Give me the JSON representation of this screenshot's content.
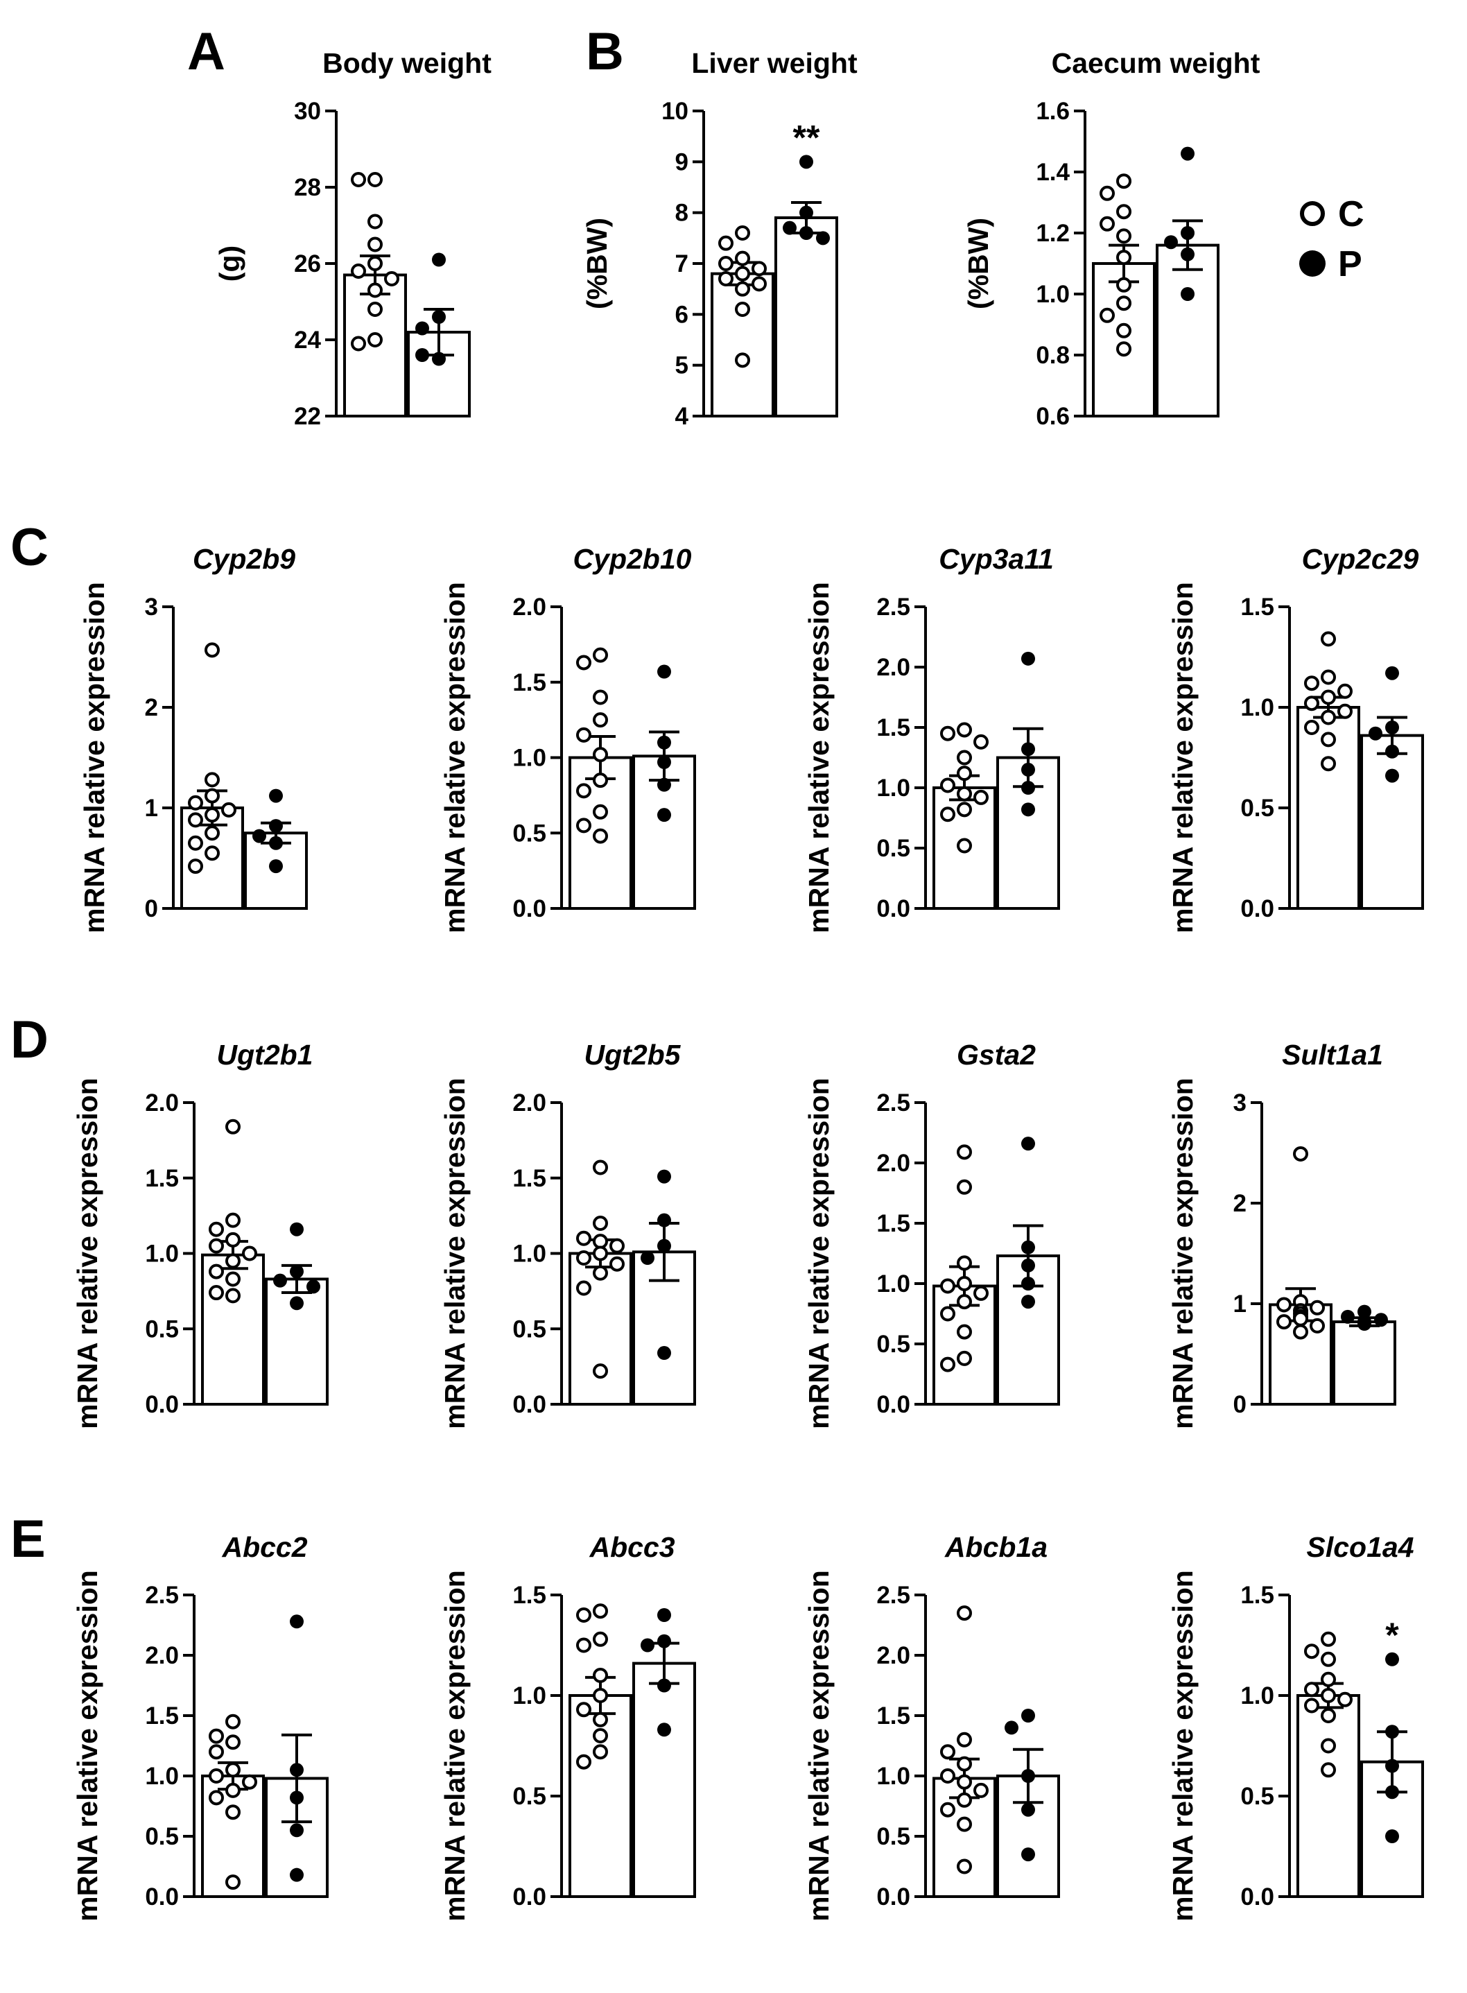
{
  "panel_labels": [
    "A",
    "B",
    "C",
    "D",
    "E"
  ],
  "legend": [
    {
      "label": "C",
      "marker": "open-circle"
    },
    {
      "label": "P",
      "marker": "filled-circle"
    }
  ],
  "chart_data": [
    {
      "id": "body-weight",
      "type": "bar",
      "title": "Body weight",
      "italic": false,
      "ylabel": "(g)",
      "ylim": [
        22,
        30
      ],
      "yticks": [
        22,
        24,
        26,
        28,
        30
      ],
      "tick_decimals": 0,
      "series": [
        {
          "name": "C",
          "mean": 25.7,
          "sem": 0.5,
          "points": [
            28.2,
            28.2,
            27.1,
            26.5,
            26.0,
            25.8,
            25.6,
            25.3,
            24.8,
            24.0,
            23.9
          ]
        },
        {
          "name": "P",
          "mean": 24.2,
          "sem": 0.6,
          "points": [
            26.1,
            24.6,
            24.3,
            23.5,
            23.6
          ]
        }
      ],
      "annotation": ""
    },
    {
      "id": "liver-weight",
      "type": "bar",
      "title": "Liver weight",
      "italic": false,
      "ylabel": "(%BW)",
      "ylim": [
        4,
        10
      ],
      "yticks": [
        4,
        5,
        6,
        7,
        8,
        9,
        10
      ],
      "tick_decimals": 0,
      "series": [
        {
          "name": "C",
          "mean": 6.8,
          "sem": 0.22,
          "points": [
            7.6,
            7.4,
            7.1,
            7.0,
            6.9,
            6.8,
            6.7,
            6.6,
            6.5,
            6.1,
            5.1
          ]
        },
        {
          "name": "P",
          "mean": 7.9,
          "sem": 0.3,
          "points": [
            9.0,
            8.0,
            7.7,
            7.6,
            7.5
          ]
        }
      ],
      "annotation": "**"
    },
    {
      "id": "caecum-weight",
      "type": "bar",
      "title": "Caecum weight",
      "italic": false,
      "ylabel": "(%BW)",
      "ylim": [
        0.6,
        1.6
      ],
      "yticks": [
        0.6,
        0.8,
        1.0,
        1.2,
        1.4,
        1.6
      ],
      "tick_decimals": 1,
      "series": [
        {
          "name": "C",
          "mean": 1.1,
          "sem": 0.06,
          "points": [
            1.37,
            1.33,
            1.27,
            1.23,
            1.19,
            1.12,
            1.03,
            0.97,
            0.93,
            0.88,
            0.82
          ]
        },
        {
          "name": "P",
          "mean": 1.16,
          "sem": 0.08,
          "points": [
            1.46,
            1.2,
            1.17,
            1.13,
            1.0
          ]
        }
      ],
      "annotation": ""
    },
    {
      "id": "cyp2b9",
      "type": "bar",
      "title": "Cyp2b9",
      "italic": true,
      "ylabel": "mRNA relative expression",
      "ylim": [
        0,
        3
      ],
      "yticks": [
        0,
        1,
        2,
        3
      ],
      "tick_decimals": 0,
      "series": [
        {
          "name": "C",
          "mean": 1.0,
          "sem": 0.17,
          "points": [
            2.57,
            1.28,
            1.12,
            1.05,
            0.98,
            0.93,
            0.88,
            0.75,
            0.65,
            0.55,
            0.42
          ]
        },
        {
          "name": "P",
          "mean": 0.75,
          "sem": 0.1,
          "points": [
            1.12,
            0.82,
            0.72,
            0.65,
            0.42
          ]
        }
      ],
      "annotation": ""
    },
    {
      "id": "cyp2b10",
      "type": "bar",
      "title": "Cyp2b10",
      "italic": true,
      "ylabel": "mRNA relative expression",
      "ylim": [
        0,
        2
      ],
      "yticks": [
        0,
        0.5,
        1.0,
        1.5,
        2.0
      ],
      "tick_decimals": 1,
      "series": [
        {
          "name": "C",
          "mean": 1.0,
          "sem": 0.14,
          "points": [
            1.68,
            1.63,
            1.4,
            1.25,
            1.15,
            1.02,
            0.85,
            0.78,
            0.64,
            0.55,
            0.48
          ]
        },
        {
          "name": "P",
          "mean": 1.01,
          "sem": 0.16,
          "points": [
            1.57,
            1.1,
            0.97,
            0.82,
            0.62
          ]
        }
      ],
      "annotation": ""
    },
    {
      "id": "cyp3a11",
      "type": "bar",
      "title": "Cyp3a11",
      "italic": true,
      "ylabel": "mRNA relative expression",
      "ylim": [
        0,
        2.5
      ],
      "yticks": [
        0,
        0.5,
        1.0,
        1.5,
        2.0,
        2.5
      ],
      "tick_decimals": 1,
      "series": [
        {
          "name": "C",
          "mean": 1.0,
          "sem": 0.1,
          "points": [
            1.48,
            1.45,
            1.38,
            1.25,
            1.12,
            1.02,
            0.95,
            0.92,
            0.82,
            0.78,
            0.52
          ]
        },
        {
          "name": "P",
          "mean": 1.25,
          "sem": 0.24,
          "points": [
            2.07,
            1.32,
            1.15,
            1.0,
            0.82
          ]
        }
      ],
      "annotation": ""
    },
    {
      "id": "cyp2c29",
      "type": "bar",
      "title": "Cyp2c29",
      "italic": true,
      "ylabel": "mRNA relative expression",
      "ylim": [
        0,
        1.5
      ],
      "yticks": [
        0,
        0.5,
        1.0,
        1.5
      ],
      "tick_decimals": 1,
      "series": [
        {
          "name": "C",
          "mean": 1.0,
          "sem": 0.05,
          "points": [
            1.34,
            1.15,
            1.12,
            1.08,
            1.05,
            1.02,
            0.98,
            0.95,
            0.9,
            0.84,
            0.72
          ]
        },
        {
          "name": "P",
          "mean": 0.86,
          "sem": 0.09,
          "points": [
            1.17,
            0.9,
            0.87,
            0.78,
            0.66
          ]
        }
      ],
      "annotation": ""
    },
    {
      "id": "ugt2b1",
      "type": "bar",
      "title": "Ugt2b1",
      "italic": true,
      "ylabel": "mRNA relative expression",
      "ylim": [
        0,
        2
      ],
      "yticks": [
        0,
        0.5,
        1.0,
        1.5,
        2.0
      ],
      "tick_decimals": 1,
      "series": [
        {
          "name": "C",
          "mean": 0.99,
          "sem": 0.09,
          "points": [
            1.84,
            1.22,
            1.16,
            1.09,
            1.05,
            1.0,
            0.95,
            0.88,
            0.83,
            0.74,
            0.72
          ]
        },
        {
          "name": "P",
          "mean": 0.83,
          "sem": 0.09,
          "points": [
            1.16,
            0.88,
            0.82,
            0.78,
            0.67
          ]
        }
      ],
      "annotation": ""
    },
    {
      "id": "ugt2b5",
      "type": "bar",
      "title": "Ugt2b5",
      "italic": true,
      "ylabel": "mRNA relative expression",
      "ylim": [
        0,
        2
      ],
      "yticks": [
        0,
        0.5,
        1.0,
        1.5,
        2.0
      ],
      "tick_decimals": 1,
      "series": [
        {
          "name": "C",
          "mean": 1.0,
          "sem": 0.09,
          "points": [
            1.57,
            1.2,
            1.1,
            1.08,
            1.05,
            1.0,
            0.97,
            0.93,
            0.87,
            0.77,
            0.22
          ]
        },
        {
          "name": "P",
          "mean": 1.01,
          "sem": 0.19,
          "points": [
            1.51,
            1.22,
            1.05,
            0.97,
            0.34
          ]
        }
      ],
      "annotation": ""
    },
    {
      "id": "gsta2",
      "type": "bar",
      "title": "Gsta2",
      "italic": true,
      "ylabel": "mRNA relative expression",
      "ylim": [
        0,
        2.5
      ],
      "yticks": [
        0,
        0.5,
        1.0,
        1.5,
        2.0,
        2.5
      ],
      "tick_decimals": 1,
      "series": [
        {
          "name": "C",
          "mean": 0.98,
          "sem": 0.16,
          "points": [
            2.09,
            1.8,
            1.17,
            1.0,
            0.98,
            0.92,
            0.85,
            0.75,
            0.6,
            0.38,
            0.33
          ]
        },
        {
          "name": "P",
          "mean": 1.23,
          "sem": 0.25,
          "points": [
            2.16,
            1.3,
            1.15,
            1.0,
            0.85
          ]
        }
      ],
      "annotation": ""
    },
    {
      "id": "sult1a1",
      "type": "bar",
      "title": "Sult1a1",
      "italic": true,
      "ylabel": "mRNA relative expression",
      "ylim": [
        0,
        3
      ],
      "yticks": [
        0,
        1,
        2,
        3
      ],
      "tick_decimals": 0,
      "series": [
        {
          "name": "C",
          "mean": 0.99,
          "sem": 0.16,
          "points": [
            2.49,
            1.02,
            0.99,
            0.96,
            0.93,
            0.9,
            0.87,
            0.85,
            0.82,
            0.78,
            0.72
          ]
        },
        {
          "name": "P",
          "mean": 0.82,
          "sem": 0.04,
          "points": [
            0.92,
            0.87,
            0.84,
            0.82,
            0.8
          ]
        }
      ],
      "annotation": ""
    },
    {
      "id": "abcc2",
      "type": "bar",
      "title": "Abcc2",
      "italic": true,
      "ylabel": "mRNA relative expression",
      "ylim": [
        0,
        2.5
      ],
      "yticks": [
        0,
        0.5,
        1.0,
        1.5,
        2.0,
        2.5
      ],
      "tick_decimals": 1,
      "series": [
        {
          "name": "C",
          "mean": 1.0,
          "sem": 0.11,
          "points": [
            1.45,
            1.33,
            1.28,
            1.2,
            1.05,
            1.0,
            0.95,
            0.88,
            0.82,
            0.7,
            0.12
          ]
        },
        {
          "name": "P",
          "mean": 0.98,
          "sem": 0.36,
          "points": [
            2.28,
            1.05,
            0.82,
            0.55,
            0.18
          ]
        }
      ],
      "annotation": ""
    },
    {
      "id": "abcc3",
      "type": "bar",
      "title": "Abcc3",
      "italic": true,
      "ylabel": "mRNA relative expression",
      "ylim": [
        0,
        1.5
      ],
      "yticks": [
        0,
        0.5,
        1.0,
        1.5
      ],
      "tick_decimals": 1,
      "series": [
        {
          "name": "C",
          "mean": 1.0,
          "sem": 0.09,
          "points": [
            1.42,
            1.4,
            1.28,
            1.25,
            1.1,
            1.0,
            0.93,
            0.88,
            0.8,
            0.72,
            0.67
          ]
        },
        {
          "name": "P",
          "mean": 1.16,
          "sem": 0.1,
          "points": [
            1.4,
            1.27,
            1.25,
            1.05,
            0.83
          ]
        }
      ],
      "annotation": ""
    },
    {
      "id": "abcb1a",
      "type": "bar",
      "title": "Abcb1a",
      "italic": true,
      "ylabel": "mRNA relative expression",
      "ylim": [
        0,
        2.5
      ],
      "yticks": [
        0,
        0.5,
        1.0,
        1.5,
        2.0,
        2.5
      ],
      "tick_decimals": 1,
      "series": [
        {
          "name": "C",
          "mean": 0.98,
          "sem": 0.16,
          "points": [
            2.35,
            1.3,
            1.2,
            1.1,
            1.0,
            0.95,
            0.88,
            0.8,
            0.72,
            0.6,
            0.25
          ]
        },
        {
          "name": "P",
          "mean": 1.0,
          "sem": 0.22,
          "points": [
            1.5,
            1.4,
            1.0,
            0.72,
            0.35
          ]
        }
      ],
      "annotation": ""
    },
    {
      "id": "slco1a4",
      "type": "bar",
      "title": "Slco1a4",
      "italic": true,
      "ylabel": "mRNA relative expression",
      "ylim": [
        0,
        1.5
      ],
      "yticks": [
        0,
        0.5,
        1.0,
        1.5
      ],
      "tick_decimals": 1,
      "series": [
        {
          "name": "C",
          "mean": 1.0,
          "sem": 0.06,
          "points": [
            1.28,
            1.22,
            1.18,
            1.08,
            1.03,
            1.0,
            0.98,
            0.95,
            0.9,
            0.75,
            0.63
          ]
        },
        {
          "name": "P",
          "mean": 0.67,
          "sem": 0.15,
          "points": [
            1.18,
            0.82,
            0.65,
            0.52,
            0.3
          ]
        }
      ],
      "annotation": "*"
    }
  ]
}
